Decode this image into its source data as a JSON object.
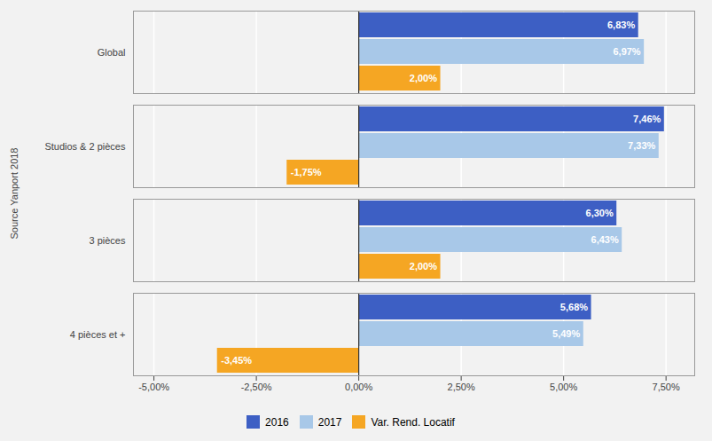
{
  "chart_data": {
    "type": "bar",
    "orientation": "horizontal",
    "ylabel": "Source Yanport 2018",
    "categories": [
      "4 pièces et +",
      "3 pièces",
      "Studios & 2 pièces",
      "Global"
    ],
    "series": [
      {
        "name": "2016",
        "color": "#3d5fc4",
        "values": [
          5.68,
          6.3,
          7.46,
          6.83
        ],
        "value_labels": [
          "5,68%",
          "6,30%",
          "7,46%",
          "6,83%"
        ]
      },
      {
        "name": "2017",
        "color": "#a8c8e8",
        "values": [
          5.49,
          6.43,
          7.33,
          6.97
        ],
        "value_labels": [
          "5,49%",
          "6,43%",
          "7,33%",
          "6,97%"
        ]
      },
      {
        "name": "Var. Rend. Locatif",
        "color": "#f5a623",
        "values": [
          -3.45,
          2.0,
          -1.75,
          2.0
        ],
        "value_labels": [
          "-3,45%",
          "2,00%",
          "-1,75%",
          "2,00%"
        ]
      }
    ],
    "xlim": [
      -5.5,
      8.2
    ],
    "xticks": [
      {
        "value": -5.0,
        "label": "-5,00%"
      },
      {
        "value": -2.5,
        "label": "-2,50%"
      },
      {
        "value": 0.0,
        "label": "0,00%"
      },
      {
        "value": 2.5,
        "label": "2,50%"
      },
      {
        "value": 5.0,
        "label": "5,00%"
      },
      {
        "value": 7.5,
        "label": "7,50%"
      }
    ],
    "grid": true,
    "legend": "bottom",
    "data_labels": true
  }
}
